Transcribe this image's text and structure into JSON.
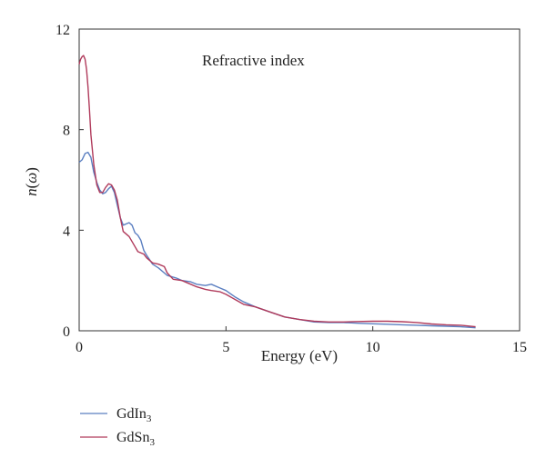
{
  "chart_data": {
    "type": "line",
    "title": "",
    "annotation": "Refractive index",
    "xlabel": "Energy (eV)",
    "ylabel": "n(ω)",
    "ylabel_main": "n(",
    "ylabel_omega": "ω",
    "ylabel_close": ")",
    "xlim": [
      0,
      15
    ],
    "ylim": [
      0,
      12
    ],
    "xticks": [
      0,
      5,
      10,
      15
    ],
    "yticks": [
      0,
      4,
      8,
      12
    ],
    "grid": false,
    "legend_position": "bottom-left, below plot",
    "series": [
      {
        "name": "GdIn3",
        "name_base": "GdIn",
        "name_sub": "3",
        "color": "#5b7fc1",
        "x": [
          0,
          0.1,
          0.2,
          0.3,
          0.4,
          0.5,
          0.6,
          0.7,
          0.8,
          0.9,
          1.0,
          1.1,
          1.2,
          1.3,
          1.4,
          1.5,
          1.6,
          1.7,
          1.8,
          1.9,
          2.0,
          2.1,
          2.2,
          2.3,
          2.5,
          2.7,
          3.0,
          3.3,
          3.5,
          3.8,
          4.0,
          4.3,
          4.5,
          4.8,
          5.0,
          5.3,
          5.6,
          6.0,
          6.5,
          7.0,
          7.5,
          8.0,
          8.5,
          9.0,
          9.5,
          10.0,
          10.5,
          11.0,
          11.5,
          12.0,
          12.5,
          13.0,
          13.5
        ],
        "values": [
          6.7,
          6.8,
          7.05,
          7.1,
          6.9,
          6.3,
          5.9,
          5.6,
          5.45,
          5.5,
          5.65,
          5.75,
          5.5,
          5.0,
          4.5,
          4.2,
          4.25,
          4.3,
          4.2,
          3.9,
          3.8,
          3.6,
          3.2,
          3.0,
          2.65,
          2.5,
          2.2,
          2.1,
          2.0,
          1.95,
          1.85,
          1.8,
          1.85,
          1.7,
          1.6,
          1.35,
          1.15,
          0.95,
          0.75,
          0.55,
          0.45,
          0.35,
          0.33,
          0.33,
          0.3,
          0.28,
          0.26,
          0.24,
          0.22,
          0.2,
          0.18,
          0.16,
          0.12
        ]
      },
      {
        "name": "GdSn3",
        "name_base": "GdSn",
        "name_sub": "3",
        "color": "#b03a5b",
        "x": [
          0,
          0.05,
          0.1,
          0.15,
          0.2,
          0.25,
          0.3,
          0.35,
          0.4,
          0.5,
          0.6,
          0.7,
          0.8,
          0.9,
          1.0,
          1.1,
          1.2,
          1.3,
          1.4,
          1.5,
          1.7,
          1.8,
          1.9,
          2.0,
          2.2,
          2.3,
          2.5,
          2.7,
          2.9,
          3.0,
          3.2,
          3.5,
          3.8,
          4.0,
          4.3,
          4.5,
          4.8,
          5.0,
          5.3,
          5.6,
          6.0,
          6.5,
          7.0,
          7.5,
          8.0,
          8.5,
          9.0,
          9.5,
          10.0,
          10.5,
          11.0,
          11.5,
          12.0,
          12.5,
          13.0,
          13.5
        ],
        "values": [
          10.6,
          10.8,
          10.9,
          10.95,
          10.8,
          10.4,
          9.7,
          8.8,
          7.8,
          6.6,
          5.8,
          5.5,
          5.5,
          5.7,
          5.85,
          5.8,
          5.6,
          5.2,
          4.5,
          3.95,
          3.75,
          3.55,
          3.35,
          3.15,
          3.05,
          2.9,
          2.7,
          2.65,
          2.55,
          2.3,
          2.05,
          2.0,
          1.85,
          1.75,
          1.65,
          1.6,
          1.55,
          1.45,
          1.25,
          1.05,
          0.95,
          0.75,
          0.55,
          0.45,
          0.38,
          0.35,
          0.35,
          0.37,
          0.38,
          0.38,
          0.36,
          0.33,
          0.27,
          0.24,
          0.22,
          0.16
        ]
      }
    ]
  }
}
